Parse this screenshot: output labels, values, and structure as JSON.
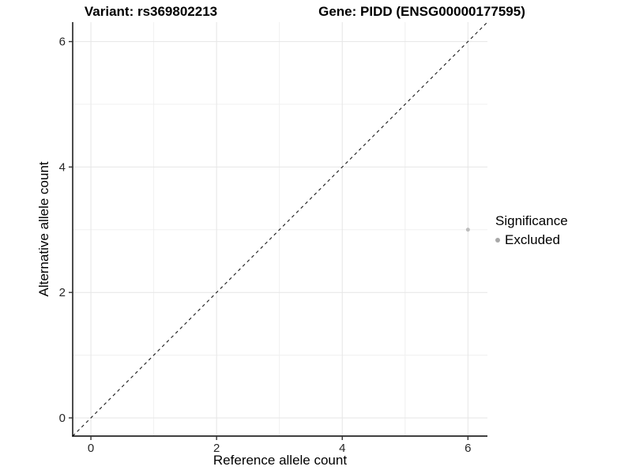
{
  "header": {
    "variant_title": "Variant: rs369802213",
    "gene_title": "Gene: PIDD (ENSG00000177595)"
  },
  "chart_data": {
    "type": "scatter",
    "xlabel": "Reference allele count",
    "ylabel": "Alternative allele count",
    "xlim": [
      -0.29,
      6.31
    ],
    "ylim": [
      -0.29,
      6.31
    ],
    "x_ticks": [
      0,
      2,
      4,
      6
    ],
    "y_ticks": [
      0,
      2,
      4,
      6
    ],
    "minor_gridlines": [
      1,
      3,
      5
    ],
    "grid": true,
    "points": [
      {
        "x": 6,
        "y": 3,
        "series": "Excluded",
        "color": "#bdbdbd",
        "radius": 2.5
      }
    ],
    "reference_line": {
      "type": "identity",
      "style": "dashed",
      "color": "#1a1a1a"
    },
    "legend": {
      "title": "Significance",
      "position": "right",
      "entries": [
        {
          "label": "Excluded",
          "color": "#a8a8a8",
          "marker": "circle"
        }
      ]
    },
    "style": {
      "panel_background": "#ffffff",
      "major_grid_color": "#e6e6e6",
      "minor_grid_color": "#f0f0f0",
      "axis_line_color": "#000000",
      "tick_color": "#333333",
      "tick_label_color": "#262626"
    }
  }
}
